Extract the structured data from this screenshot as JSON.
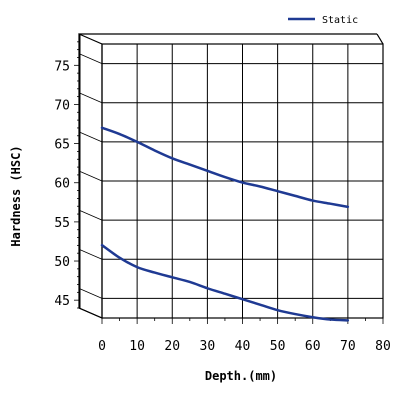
{
  "chart_data": {
    "type": "line",
    "xlabel": "Depth.(mm)",
    "ylabel": "Hardness (HSC)",
    "xlim": [
      0,
      80
    ],
    "ylim": [
      44,
      79
    ],
    "xticks": [
      0,
      10,
      20,
      30,
      40,
      50,
      60,
      70,
      80
    ],
    "yticks": [
      45,
      50,
      55,
      60,
      65,
      70,
      75
    ],
    "grid": true,
    "legend": {
      "position": "top-right",
      "entries": [
        "Static"
      ]
    },
    "series": [
      {
        "name": "Static",
        "color": "#1f3a93",
        "curves": [
          {
            "x": [
              0,
              5,
              10,
              15,
              20,
              25,
              30,
              35,
              40,
              45,
              50,
              55,
              60,
              65,
              70
            ],
            "y": [
              68.3,
              67.5,
              66.5,
              65.4,
              64.4,
              63.6,
              62.8,
              62.0,
              61.3,
              60.8,
              60.2,
              59.6,
              59.0,
              58.6,
              58.2
            ]
          },
          {
            "x": [
              0,
              5,
              10,
              15,
              20,
              25,
              30,
              35,
              40,
              45,
              50,
              55,
              60,
              65,
              70
            ],
            "y": [
              53.3,
              51.7,
              50.5,
              49.8,
              49.2,
              48.6,
              47.8,
              47.1,
              46.4,
              45.7,
              45.0,
              44.5,
              44.1,
              43.8,
              43.7
            ]
          }
        ]
      }
    ]
  }
}
